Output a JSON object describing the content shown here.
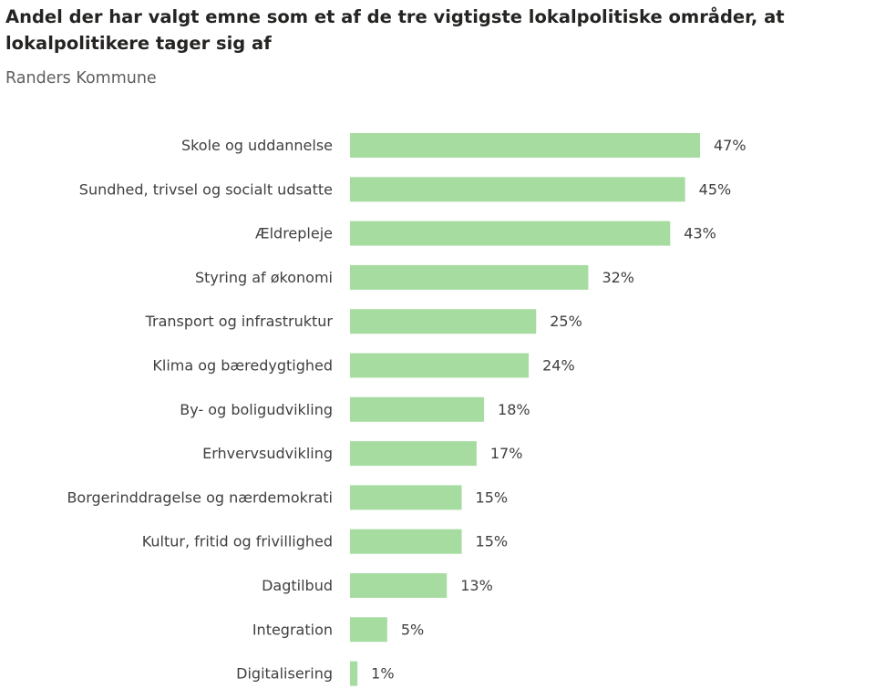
{
  "title": "Andel der har valgt emne som et af de tre vigtigste lokalpolitiske områder, at lokalpolitikere tager sig af",
  "subtitle": "Randers Kommune",
  "colors": {
    "bar": "#a6dca0",
    "text": "#404040"
  },
  "chart_data": {
    "type": "bar",
    "orientation": "horizontal",
    "title": "Andel der har valgt emne som et af de tre vigtigste lokalpolitiske områder, at lokalpolitikere tager sig af",
    "subtitle": "Randers Kommune",
    "categories": [
      "Skole og uddannelse",
      "Sundhed, trivsel og socialt udsatte",
      "Ældrepleje",
      "Styring af økonomi",
      "Transport og infrastruktur",
      "Klima og bæredygtighed",
      "By- og boligudvikling",
      "Erhvervsudvikling",
      "Borgerinddragelse og nærdemokrati",
      "Kultur, fritid og frivillighed",
      "Dagtilbud",
      "Integration",
      "Digitalisering"
    ],
    "values": [
      47,
      45,
      43,
      32,
      25,
      24,
      18,
      17,
      15,
      15,
      13,
      5,
      1
    ],
    "data_labels": [
      "47%",
      "45%",
      "43%",
      "32%",
      "25%",
      "24%",
      "18%",
      "17%",
      "15%",
      "15%",
      "13%",
      "5%",
      "1%"
    ],
    "unit": "%",
    "xlim": [
      0,
      47
    ],
    "grid": false,
    "legend": "none"
  }
}
